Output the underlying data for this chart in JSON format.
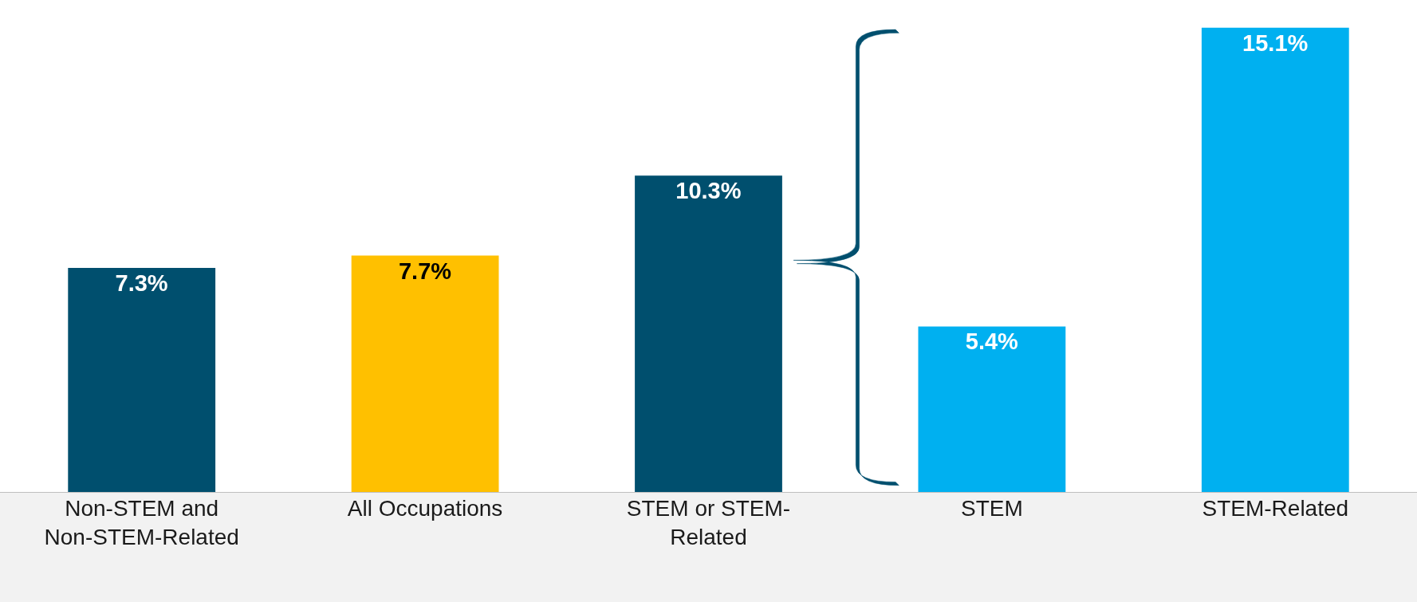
{
  "chart_data": {
    "type": "bar",
    "categories": [
      "Non-STEM and Non-STEM-Related",
      "All Occupations",
      "STEM or STEM-Related",
      "STEM",
      "STEM-Related"
    ],
    "values": [
      7.3,
      7.7,
      10.3,
      5.4,
      15.1
    ],
    "colors": [
      "#004f6e",
      "#ffc000",
      "#004f6e",
      "#00b0f0",
      "#00b0f0"
    ],
    "value_labels": [
      "7.3%",
      "7.7%",
      "10.3%",
      "5.4%",
      "15.1%"
    ],
    "ylim": [
      0,
      16
    ],
    "tick_labels": "x"
  }
}
